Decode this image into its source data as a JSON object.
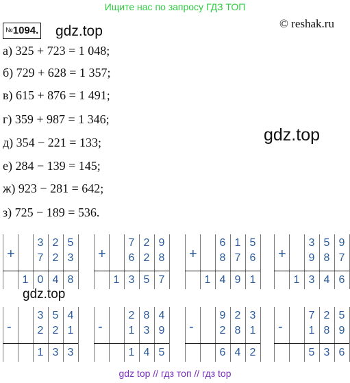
{
  "banner": "Ищите нас по запросу ГДЗ ТОП",
  "task_number": "1094.",
  "task_number_sign": "№",
  "watermarks": [
    "gdz.top",
    "gdz.top",
    "gdz.top"
  ],
  "site": "© reshak.ru",
  "equations": [
    "а) 325 + 723 = 1 048;",
    "б) 729 + 628 = 1 357;",
    "в) 615 + 876 = 1 491;",
    "г) 359 + 987 = 1 346;",
    "д) 354 − 221 = 133;",
    "е) 284 − 139 = 145;",
    "ж) 923 − 281 = 642;",
    "з) 725 − 189 = 536."
  ],
  "columns": [
    {
      "op": "+",
      "a": [
        "3",
        "2",
        "5"
      ],
      "b": [
        "7",
        "2",
        "3"
      ],
      "r": [
        "1",
        "0",
        "4",
        "8"
      ]
    },
    {
      "op": "+",
      "a": [
        "7",
        "2",
        "9"
      ],
      "b": [
        "6",
        "2",
        "8"
      ],
      "r": [
        "1",
        "3",
        "5",
        "7"
      ]
    },
    {
      "op": "+",
      "a": [
        "6",
        "1",
        "5"
      ],
      "b": [
        "8",
        "7",
        "6"
      ],
      "r": [
        "1",
        "4",
        "9",
        "1"
      ]
    },
    {
      "op": "+",
      "a": [
        "3",
        "5",
        "9"
      ],
      "b": [
        "9",
        "8",
        "7"
      ],
      "r": [
        "1",
        "3",
        "4",
        "6"
      ]
    },
    {
      "op": "-",
      "a": [
        "3",
        "5",
        "4"
      ],
      "b": [
        "2",
        "2",
        "1"
      ],
      "r": [
        "1",
        "3",
        "3"
      ]
    },
    {
      "op": "-",
      "a": [
        "2",
        "8",
        "4"
      ],
      "b": [
        "1",
        "3",
        "9"
      ],
      "r": [
        "1",
        "4",
        "5"
      ]
    },
    {
      "op": "-",
      "a": [
        "9",
        "2",
        "3"
      ],
      "b": [
        "2",
        "8",
        "1"
      ],
      "r": [
        "6",
        "4",
        "2"
      ]
    },
    {
      "op": "-",
      "a": [
        "7",
        "2",
        "5"
      ],
      "b": [
        "1",
        "8",
        "9"
      ],
      "r": [
        "5",
        "3",
        "6"
      ]
    }
  ],
  "footer": "gdz top  //  гдз топ  //  гдз top"
}
